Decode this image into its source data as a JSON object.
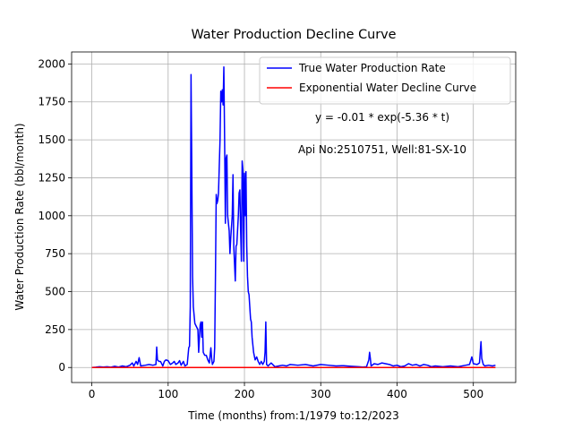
{
  "chart_data": {
    "type": "line",
    "title": "Water Production Decline Curve",
    "xlabel": "Time (months) from:1/1979 to:12/2023",
    "ylabel": "Water Production Rate (bbl/month)",
    "annotations": [
      "y = -0.01 * exp(-5.36 * t)",
      "Api No:2510751, Well:81-SX-10"
    ],
    "xlim": [
      -26.5,
      555.5
    ],
    "ylim": [
      -99,
      2079
    ],
    "xticks": [
      0,
      100,
      200,
      300,
      400,
      500
    ],
    "yticks": [
      0,
      250,
      500,
      750,
      1000,
      1250,
      1500,
      1750,
      2000
    ],
    "grid": true,
    "legend": "upper right",
    "series": [
      {
        "name": "True Water Production Rate",
        "color": "#0000ff",
        "x": [
          0,
          5,
          10,
          15,
          20,
          25,
          30,
          35,
          40,
          45,
          50,
          53,
          55,
          58,
          60,
          62,
          64,
          70,
          75,
          80,
          84,
          85,
          86,
          88,
          90,
          93,
          95,
          97,
          100,
          103,
          106,
          108,
          110,
          113,
          115,
          117,
          120,
          122,
          125,
          127,
          128,
          129,
          130,
          131,
          132,
          133,
          135,
          137,
          139,
          140,
          141,
          142,
          143,
          144,
          145,
          146,
          148,
          150,
          152,
          154,
          156,
          157,
          158,
          160,
          161,
          162,
          163,
          164,
          165,
          166,
          168,
          169,
          170,
          171,
          172,
          173,
          174,
          175,
          176,
          177,
          178,
          180,
          181,
          182,
          184,
          185,
          186,
          188,
          189,
          190,
          192,
          193,
          194,
          195,
          196,
          197,
          198,
          199,
          200,
          201,
          202,
          203,
          204,
          205,
          206,
          208,
          209,
          210,
          212,
          214,
          216,
          218,
          220,
          222,
          224,
          226,
          227,
          228,
          229,
          231,
          235,
          238,
          240,
          245,
          250,
          255,
          260,
          270,
          280,
          290,
          300,
          310,
          320,
          330,
          340,
          350,
          355,
          360,
          363,
          364,
          365,
          366,
          370,
          375,
          380,
          385,
          390,
          395,
          400,
          405,
          410,
          415,
          420,
          425,
          430,
          435,
          440,
          445,
          450,
          460,
          470,
          480,
          490,
          495,
          498,
          500,
          505,
          508,
          510,
          511,
          513,
          515,
          520,
          525,
          529
        ],
        "values": [
          0,
          2,
          5,
          3,
          5,
          2,
          8,
          3,
          10,
          5,
          15,
          30,
          10,
          40,
          20,
          65,
          10,
          15,
          20,
          15,
          20,
          135,
          50,
          40,
          40,
          10,
          40,
          50,
          45,
          20,
          30,
          40,
          20,
          30,
          45,
          15,
          40,
          10,
          20,
          130,
          140,
          400,
          1930,
          1300,
          600,
          400,
          290,
          270,
          250,
          100,
          200,
          280,
          300,
          200,
          300,
          100,
          80,
          80,
          50,
          30,
          130,
          60,
          20,
          40,
          130,
          600,
          1140,
          1080,
          1100,
          1150,
          1500,
          1820,
          1750,
          1830,
          1730,
          1980,
          1500,
          950,
          1380,
          1400,
          1000,
          900,
          750,
          850,
          1000,
          1270,
          800,
          570,
          800,
          810,
          1000,
          1150,
          1170,
          900,
          700,
          1360,
          1300,
          700,
          1280,
          1000,
          1290,
          800,
          600,
          500,
          480,
          320,
          300,
          200,
          100,
          50,
          70,
          40,
          20,
          40,
          20,
          40,
          100,
          300,
          20,
          10,
          30,
          15,
          5,
          10,
          15,
          10,
          20,
          15,
          20,
          10,
          20,
          15,
          10,
          12,
          8,
          5,
          3,
          5,
          50,
          100,
          60,
          10,
          25,
          20,
          30,
          25,
          20,
          10,
          15,
          5,
          10,
          25,
          15,
          20,
          10,
          20,
          15,
          5,
          10,
          5,
          10,
          5,
          15,
          20,
          70,
          25,
          20,
          30,
          170,
          60,
          20,
          10,
          15,
          10,
          15
        ]
      },
      {
        "name": "Exponential Water Decline Curve",
        "color": "#ff0000",
        "x": [
          0,
          529
        ],
        "values": [
          0,
          0
        ]
      }
    ]
  }
}
